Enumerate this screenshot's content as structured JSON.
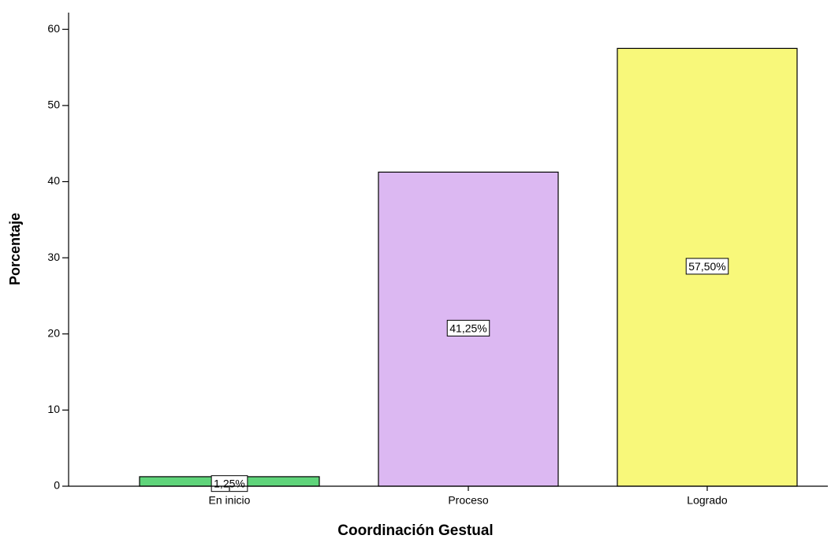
{
  "chart_data": {
    "type": "bar",
    "xlabel": "Coordinación Gestual",
    "ylabel": "Porcentaje",
    "categories": [
      "En inicio",
      "Proceso",
      "Logrado"
    ],
    "values": [
      1.25,
      41.25,
      57.5
    ],
    "value_labels": [
      "1,25%",
      "41,25%",
      "57,50%"
    ],
    "colors": [
      "#5fd47a",
      "#dcb8f2",
      "#f8f87a"
    ],
    "ylim": [
      0,
      62.2
    ],
    "yticks": [
      0,
      10,
      20,
      30,
      40,
      50,
      60
    ],
    "grid": false
  }
}
